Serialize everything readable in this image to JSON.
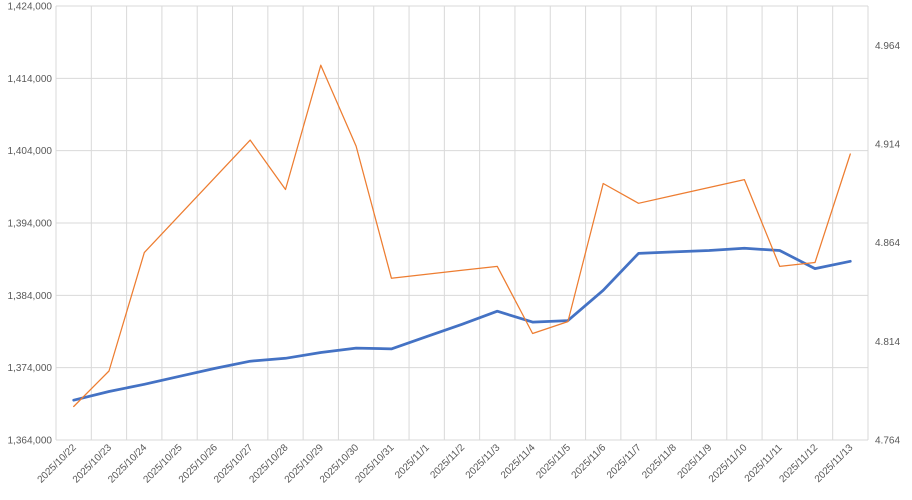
{
  "chart_data": {
    "type": "line",
    "title": "",
    "xlabel": "",
    "ylabel": "",
    "categories": [
      "2025/10/22",
      "2025/10/23",
      "2025/10/24",
      "2025/10/25",
      "2025/10/26",
      "2025/10/27",
      "2025/10/28",
      "2025/10/29",
      "2025/10/30",
      "2025/10/31",
      "2025/11/1",
      "2025/11/2",
      "2025/11/3",
      "2025/11/4",
      "2025/11/5",
      "2025/11/6",
      "2025/11/7",
      "2025/11/8",
      "2025/11/9",
      "2025/11/10",
      "2025/11/11",
      "2025/11/12",
      "2025/11/13"
    ],
    "left_axis": {
      "ylim": [
        1364000,
        1424000
      ],
      "ticks": [
        "1,364,000",
        "1,374,000",
        "1,384,000",
        "1,394,000",
        "1,404,000",
        "1,414,000",
        "1,424,000"
      ]
    },
    "right_axis": {
      "ylim": [
        4.764,
        4.984
      ],
      "ticks": [
        "4.764",
        "4.814",
        "4.864",
        "4.914",
        "4.964"
      ]
    },
    "series": [
      {
        "axis": "left",
        "color": "#4472c4",
        "values": [
          1369500,
          1370700,
          1371700,
          1372800,
          1373900,
          1374900,
          1375300,
          1376100,
          1376700,
          1376600,
          1378300,
          1380000,
          1381800,
          1380300,
          1380500,
          1384700,
          1389800,
          1390000,
          1390200,
          1390500,
          1390200,
          1387700,
          1388700
        ]
      },
      {
        "axis": "right",
        "color": "#ed7d31",
        "values": [
          4.781,
          4.799,
          4.859,
          4.878,
          4.897,
          4.916,
          4.891,
          4.954,
          4.913,
          4.846,
          4.848,
          4.85,
          4.852,
          4.818,
          4.824,
          4.894,
          4.884,
          4.888,
          4.892,
          4.896,
          4.852,
          4.854,
          4.909
        ]
      }
    ]
  }
}
